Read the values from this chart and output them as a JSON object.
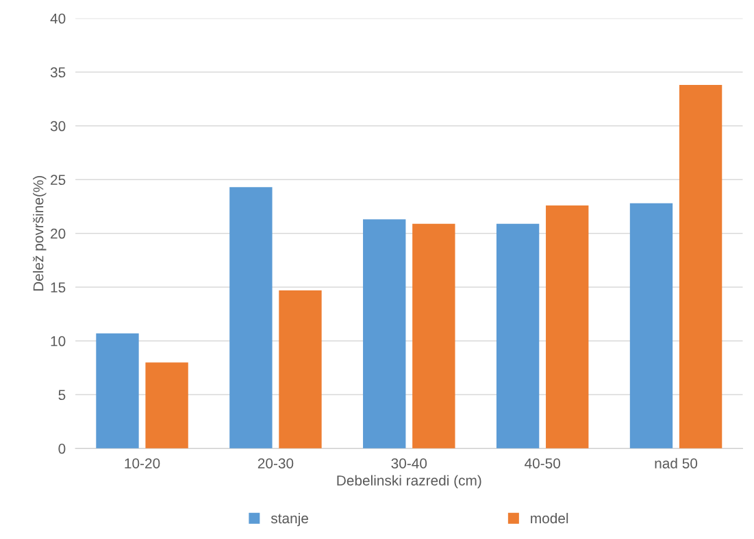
{
  "chart_data": {
    "type": "bar",
    "xlabel": "Debelinski razredi (cm)",
    "ylabel": "Delež površine(%)",
    "categories": [
      "10-20",
      "20-30",
      "30-40",
      "40-50",
      "nad 50"
    ],
    "series": [
      {
        "name": "stanje",
        "color": "#5b9bd5",
        "values": [
          10.7,
          24.3,
          21.3,
          20.9,
          22.8
        ]
      },
      {
        "name": "model",
        "color": "#ed7d31",
        "values": [
          8.0,
          14.7,
          20.9,
          22.6,
          33.8
        ]
      }
    ],
    "ylim": [
      0,
      40
    ],
    "yticks": [
      0,
      5,
      10,
      15,
      20,
      25,
      30,
      35,
      40
    ],
    "grid": "y",
    "legend": "bottom"
  }
}
